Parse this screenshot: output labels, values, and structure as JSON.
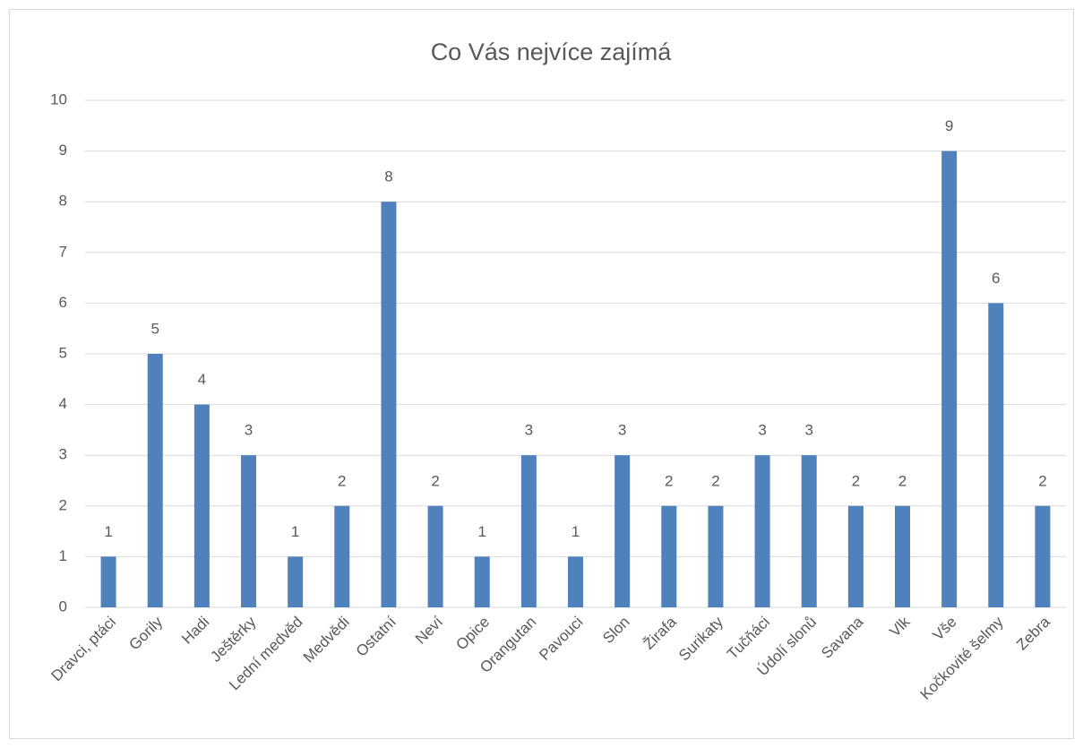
{
  "chart_data": {
    "type": "bar",
    "title": "Co Vás nejvíce zajímá",
    "categories": [
      "Dravci, ptáci",
      "Gorily",
      "Hadi",
      "Ještěrky",
      "Lední medvěd",
      "Medvědi",
      "Ostatní",
      "Neví",
      "Opice",
      "Orangutan",
      "Pavouci",
      "Slon",
      "Žirafa",
      "Surikaty",
      "Tučňáci",
      "Údolí slonů",
      "Savana",
      "Vlk",
      "Vše",
      "Kočkovité šelmy",
      "Zebra"
    ],
    "values": [
      1,
      5,
      4,
      3,
      1,
      2,
      8,
      2,
      1,
      3,
      1,
      3,
      2,
      2,
      3,
      3,
      2,
      2,
      9,
      6,
      2
    ],
    "color": "#4f81bd",
    "ylim": [
      0,
      10
    ],
    "yticks": [
      0,
      1,
      2,
      3,
      4,
      5,
      6,
      7,
      8,
      9,
      10
    ],
    "grid": true
  }
}
